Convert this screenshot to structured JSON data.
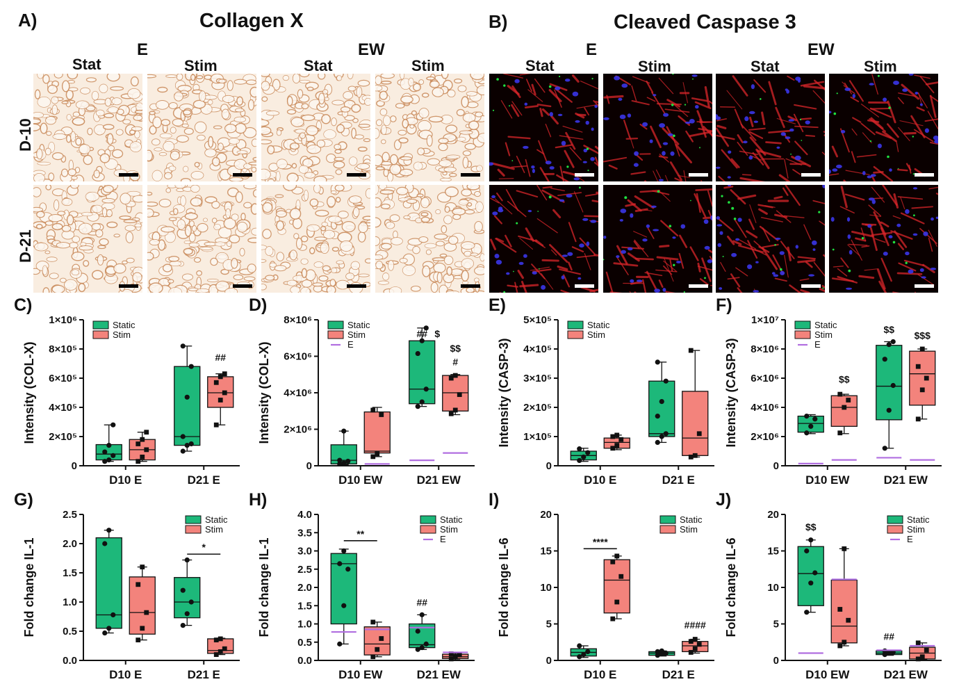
{
  "figure": {
    "panelA": {
      "letter": "A)",
      "title": "Collagen X"
    },
    "panelB": {
      "letter": "B)",
      "title": "Cleaved Caspase 3"
    },
    "micrograph_groups": {
      "A": {
        "groups": [
          "E",
          "EW"
        ],
        "cols": [
          "Stat",
          "Stim",
          "Stat",
          "Stim"
        ]
      },
      "B": {
        "groups": [
          "E",
          "EW"
        ],
        "cols": [
          "Stat",
          "Stim",
          "Stat",
          "Stim"
        ]
      }
    },
    "rows": [
      "D-10",
      "D-21"
    ]
  },
  "colors": {
    "static": "#1db87a",
    "stim": "#f3837c",
    "e_line": "#b06ee0",
    "ihc_bg": "#f9ede0",
    "ihc_stain": "#c98a5a",
    "if_bg": "#0a0000",
    "if_red": "#d8262a",
    "if_blue": "#3a35e8",
    "if_green": "#20e040"
  },
  "chart_data": [
    {
      "id": "C",
      "letter": "C)",
      "type": "box",
      "ylabel": "Intensity  (COL-X)",
      "ylim": [
        0,
        1000000
      ],
      "yticks": [
        "0",
        "2×10⁵",
        "4×10⁵",
        "6×10⁵",
        "8×10⁵",
        "1×10⁶"
      ],
      "categories": [
        "D10 E",
        "D21 E"
      ],
      "legend": [
        "Static",
        "Stim"
      ],
      "series": [
        {
          "name": "Static",
          "color": "static",
          "boxes": [
            {
              "min": 30000,
              "q1": 40000,
              "med": 80000,
              "q3": 145000,
              "max": 280000,
              "points": [
                30000,
                40000,
                70000,
                95000,
                140000,
                280000
              ]
            },
            {
              "min": 100000,
              "q1": 140000,
              "med": 200000,
              "q3": 680000,
              "max": 820000,
              "points": [
                100000,
                140000,
                150000,
                200000,
                470000,
                680000,
                820000
              ]
            }
          ]
        },
        {
          "name": "Stim",
          "color": "stim",
          "boxes": [
            {
              "min": 30000,
              "q1": 40000,
              "med": 110000,
              "q3": 180000,
              "max": 230000,
              "points": [
                30000,
                60000,
                110000,
                150000,
                180000,
                230000
              ]
            },
            {
              "min": 280000,
              "q1": 400000,
              "med": 500000,
              "q3": 610000,
              "max": 630000,
              "points": [
                280000,
                450000,
                500000,
                570000,
                610000,
                630000
              ]
            }
          ]
        }
      ],
      "e_levels": [],
      "annotations": [
        {
          "text": "##",
          "cat": 1,
          "series": 1,
          "y": 720000
        }
      ]
    },
    {
      "id": "D",
      "letter": "D)",
      "type": "box",
      "ylabel": "Intensity  (COL-X)",
      "ylim": [
        0,
        8000000
      ],
      "yticks": [
        "0",
        "2×10⁶",
        "4×10⁶",
        "6×10⁶",
        "8×10⁶"
      ],
      "categories": [
        "D10 EW",
        "D21 EW"
      ],
      "legend": [
        "Static",
        "Stim",
        "E"
      ],
      "series": [
        {
          "name": "Static",
          "color": "static",
          "boxes": [
            {
              "min": 50000,
              "q1": 100000,
              "med": 300000,
              "q3": 1150000,
              "max": 1900000,
              "points": [
                100000,
                150000,
                250000,
                300000,
                1900000
              ]
            },
            {
              "min": 3250000,
              "q1": 3400000,
              "med": 4200000,
              "q3": 6850000,
              "max": 7550000,
              "points": [
                3250000,
                3500000,
                4200000,
                6150000,
                6850000,
                7550000
              ]
            }
          ]
        },
        {
          "name": "Stim",
          "color": "stim",
          "boxes": [
            {
              "min": 500000,
              "q1": 700000,
              "med": 800000,
              "q3": 2950000,
              "max": 3200000,
              "points": [
                500000,
                650000,
                2800000,
                3050000
              ]
            },
            {
              "min": 2800000,
              "q1": 3000000,
              "med": 4000000,
              "q3": 4950000,
              "max": 5000000,
              "points": [
                2850000,
                3050000,
                3900000,
                4800000,
                4950000
              ]
            }
          ]
        }
      ],
      "e_levels": [
        {
          "cat": 0,
          "series": 1,
          "y": 100000
        },
        {
          "cat": 1,
          "series": 0,
          "y": 300000
        },
        {
          "cat": 1,
          "series": 1,
          "y": 700000
        }
      ],
      "annotations": [
        {
          "text": "##",
          "cat": 1,
          "series": 0,
          "y": 7050000
        },
        {
          "text": "$",
          "cat": 1,
          "series": 0,
          "y": 7050000,
          "dx": 22
        },
        {
          "text": "$$",
          "cat": 1,
          "series": 1,
          "y": 6250000
        },
        {
          "text": "#",
          "cat": 1,
          "series": 1,
          "y": 5500000
        }
      ]
    },
    {
      "id": "E",
      "letter": "E)",
      "type": "box",
      "ylabel": "Intensity  (CASP-3)",
      "ylim": [
        0,
        500000
      ],
      "yticks": [
        "0",
        "1×10⁵",
        "2×10⁵",
        "3×10⁵",
        "4×10⁵",
        "5×10⁵"
      ],
      "categories": [
        "D10 E",
        "D21 E"
      ],
      "legend": [
        "Static",
        "Stim"
      ],
      "series": [
        {
          "name": "Static",
          "color": "static",
          "boxes": [
            {
              "min": 15000,
              "q1": 20000,
              "med": 35000,
              "q3": 50000,
              "max": 60000,
              "points": [
                18000,
                30000,
                45000,
                58000
              ]
            },
            {
              "min": 80000,
              "q1": 100000,
              "med": 110000,
              "q3": 290000,
              "max": 355000,
              "points": [
                80000,
                100000,
                110000,
                170000,
                220000,
                290000,
                355000
              ]
            }
          ]
        },
        {
          "name": "Stim",
          "color": "stim",
          "boxes": [
            {
              "min": 55000,
              "q1": 60000,
              "med": 80000,
              "q3": 95000,
              "max": 105000,
              "points": [
                60000,
                70000,
                90000,
                100000,
                105000
              ]
            },
            {
              "min": 30000,
              "q1": 35000,
              "med": 95000,
              "q3": 255000,
              "max": 395000,
              "points": [
                30000,
                35000,
                110000,
                395000
              ]
            }
          ]
        }
      ],
      "e_levels": [],
      "annotations": []
    },
    {
      "id": "F",
      "letter": "F)",
      "type": "box",
      "ylabel": "Intensity  (CASP-3)",
      "ylim": [
        0,
        10000000
      ],
      "yticks": [
        "0",
        "2×10⁶",
        "4×10⁶",
        "6×10⁶",
        "8×10⁶",
        "1×10⁷"
      ],
      "categories": [
        "D10 EW",
        "D21 EW"
      ],
      "legend": [
        "Static",
        "Stim",
        "E"
      ],
      "series": [
        {
          "name": "Static",
          "color": "static",
          "boxes": [
            {
              "min": 2200000,
              "q1": 2300000,
              "med": 2900000,
              "q3": 3400000,
              "max": 3500000,
              "points": [
                2250000,
                2700000,
                3200000,
                3400000
              ]
            },
            {
              "min": 1200000,
              "q1": 3150000,
              "med": 5450000,
              "q3": 8250000,
              "max": 8500000,
              "points": [
                1200000,
                3800000,
                5500000,
                7300000,
                8300000,
                8500000
              ]
            }
          ]
        },
        {
          "name": "Stim",
          "color": "stim",
          "boxes": [
            {
              "min": 2200000,
              "q1": 2700000,
              "med": 4000000,
              "q3": 4800000,
              "max": 4900000,
              "points": [
                2250000,
                4000000,
                4500000,
                4900000
              ]
            },
            {
              "min": 3200000,
              "q1": 4150000,
              "med": 6300000,
              "q3": 7850000,
              "max": 8000000,
              "points": [
                3200000,
                5200000,
                6000000,
                6800000,
                8000000
              ]
            }
          ]
        }
      ],
      "e_levels": [
        {
          "cat": 0,
          "series": 0,
          "y": 150000
        },
        {
          "cat": 0,
          "series": 1,
          "y": 400000
        },
        {
          "cat": 1,
          "series": 0,
          "y": 550000
        },
        {
          "cat": 1,
          "series": 1,
          "y": 400000
        }
      ],
      "annotations": [
        {
          "text": "$$",
          "cat": 0,
          "series": 1,
          "y": 5700000
        },
        {
          "text": "$$",
          "cat": 1,
          "series": 0,
          "y": 9100000
        },
        {
          "text": "$$$",
          "cat": 1,
          "series": 1,
          "y": 8700000
        }
      ]
    },
    {
      "id": "G",
      "letter": "G)",
      "type": "box",
      "ylabel": "Fold change IL-1",
      "ylim": [
        0,
        2.5
      ],
      "yticks": [
        "0.0",
        "0.5",
        "1.0",
        "1.5",
        "2.0",
        "2.5"
      ],
      "categories": [
        "D10 E",
        "D21 E"
      ],
      "legend": [
        "Static",
        "Stim"
      ],
      "series": [
        {
          "name": "Static",
          "color": "static",
          "boxes": [
            {
              "min": 0.47,
              "q1": 0.55,
              "med": 0.78,
              "q3": 2.1,
              "max": 2.23,
              "points": [
                0.47,
                0.55,
                0.78,
                2.0,
                2.23
              ]
            },
            {
              "min": 0.6,
              "q1": 0.73,
              "med": 1.0,
              "q3": 1.42,
              "max": 1.72,
              "points": [
                0.6,
                0.8,
                1.0,
                1.2,
                1.72
              ]
            }
          ]
        },
        {
          "name": "Stim",
          "color": "stim",
          "boxes": [
            {
              "min": 0.35,
              "q1": 0.45,
              "med": 0.82,
              "q3": 1.43,
              "max": 1.6,
              "points": [
                0.35,
                0.55,
                0.82,
                1.3,
                1.6
              ]
            },
            {
              "min": 0.1,
              "q1": 0.12,
              "med": 0.17,
              "q3": 0.37,
              "max": 0.38,
              "points": [
                0.1,
                0.15,
                0.2,
                0.35,
                0.37
              ]
            }
          ]
        }
      ],
      "e_levels": [],
      "brackets": [
        {
          "cat": 1,
          "text": "*",
          "y": 1.82
        }
      ],
      "annotations": []
    },
    {
      "id": "H",
      "letter": "H)",
      "type": "box",
      "ylabel": "Fold change IL-1",
      "ylim": [
        0,
        4.0
      ],
      "yticks": [
        "0.0",
        "0.5",
        "1.0",
        "1.5",
        "2.0",
        "2.5",
        "3.0",
        "3.5",
        "4.0"
      ],
      "categories": [
        "D10 EW",
        "D21 EW"
      ],
      "legend": [
        "Static",
        "Stim",
        "E"
      ],
      "series": [
        {
          "name": "Static",
          "color": "static",
          "boxes": [
            {
              "min": 0.45,
              "q1": 1.0,
              "med": 2.65,
              "q3": 2.93,
              "max": 3.05,
              "points": [
                0.45,
                1.5,
                2.5,
                2.65,
                3.0
              ]
            },
            {
              "min": 0.3,
              "q1": 0.35,
              "med": 0.43,
              "q3": 1.0,
              "max": 1.25,
              "points": [
                0.3,
                0.35,
                0.45,
                0.8,
                1.25
              ]
            }
          ]
        },
        {
          "name": "Stim",
          "color": "stim",
          "boxes": [
            {
              "min": 0.1,
              "q1": 0.15,
              "med": 0.45,
              "q3": 0.92,
              "max": 1.05,
              "points": [
                0.1,
                0.3,
                0.6,
                1.05
              ]
            },
            {
              "min": 0.02,
              "q1": 0.05,
              "med": 0.1,
              "q3": 0.17,
              "max": 0.2,
              "points": [
                0.04,
                0.1,
                0.15,
                0.18
              ]
            }
          ]
        }
      ],
      "e_levels": [
        {
          "cat": 0,
          "series": 0,
          "y": 0.78
        },
        {
          "cat": 0,
          "series": 1,
          "y": 0.85
        },
        {
          "cat": 1,
          "series": 0,
          "y": 0.9
        },
        {
          "cat": 1,
          "series": 1,
          "y": 0.22
        }
      ],
      "brackets": [
        {
          "cat": 0,
          "text": "**",
          "y": 3.28
        }
      ],
      "annotations": [
        {
          "text": "##",
          "cat": 1,
          "series": 0,
          "y": 1.5
        }
      ]
    },
    {
      "id": "I",
      "letter": "I)",
      "type": "box",
      "ylabel": "Fold change IL-6",
      "ylim": [
        0,
        20
      ],
      "yticks": [
        "0",
        "5",
        "10",
        "15",
        "20"
      ],
      "categories": [
        "D10 E",
        "D21 E"
      ],
      "legend": [
        "Static",
        "Stim"
      ],
      "series": [
        {
          "name": "Static",
          "color": "static",
          "boxes": [
            {
              "min": 0.4,
              "q1": 0.6,
              "med": 1.1,
              "q3": 1.6,
              "max": 2.0,
              "points": [
                0.5,
                0.8,
                1.2,
                2.0
              ]
            },
            {
              "min": 0.6,
              "q1": 0.7,
              "med": 1.0,
              "q3": 1.2,
              "max": 1.3,
              "points": [
                0.7,
                0.9,
                1.0,
                1.2,
                1.3
              ]
            }
          ]
        },
        {
          "name": "Stim",
          "color": "stim",
          "boxes": [
            {
              "min": 5.7,
              "q1": 6.5,
              "med": 11.0,
              "q3": 13.8,
              "max": 14.3,
              "points": [
                5.7,
                8.0,
                11.5,
                13.5,
                14.3
              ]
            },
            {
              "min": 1.0,
              "q1": 1.2,
              "med": 2.0,
              "q3": 2.6,
              "max": 2.9,
              "points": [
                1.1,
                1.6,
                2.2,
                2.6,
                2.9
              ]
            }
          ]
        }
      ],
      "e_levels": [],
      "brackets": [
        {
          "cat": 0,
          "text": "****",
          "y": 15.3
        }
      ],
      "annotations": [
        {
          "text": "####",
          "cat": 1,
          "series": 1,
          "y": 4.4
        }
      ]
    },
    {
      "id": "J",
      "letter": "J)",
      "type": "box",
      "ylabel": "Fold change IL-6",
      "ylim": [
        0,
        20
      ],
      "yticks": [
        "0",
        "5",
        "10",
        "15",
        "20"
      ],
      "categories": [
        "D10 EW",
        "D21 EW"
      ],
      "legend": [
        "Static",
        "Stim",
        "E"
      ],
      "series": [
        {
          "name": "Static",
          "color": "static",
          "boxes": [
            {
              "min": 6.6,
              "q1": 7.5,
              "med": 11.9,
              "q3": 15.6,
              "max": 16.5,
              "points": [
                6.6,
                10.6,
                12.0,
                15.0,
                16.5
              ]
            },
            {
              "min": 0.7,
              "q1": 0.8,
              "med": 1.0,
              "q3": 1.3,
              "max": 1.4,
              "points": [
                0.8,
                1.0,
                1.1,
                1.3
              ]
            }
          ]
        },
        {
          "name": "Stim",
          "color": "stim",
          "boxes": [
            {
              "min": 2.0,
              "q1": 2.4,
              "med": 4.7,
              "q3": 11.0,
              "max": 15.3,
              "points": [
                2.0,
                2.5,
                5.5,
                7.0,
                15.3
              ]
            },
            {
              "min": 0.1,
              "q1": 0.2,
              "med": 1.0,
              "q3": 1.8,
              "max": 2.4,
              "points": [
                0.2,
                0.5,
                1.4,
                2.4
              ]
            }
          ]
        }
      ],
      "e_levels": [
        {
          "cat": 0,
          "series": 0,
          "y": 1.0
        },
        {
          "cat": 0,
          "series": 1,
          "y": 11.1
        },
        {
          "cat": 1,
          "series": 0,
          "y": 1.4
        },
        {
          "cat": 1,
          "series": 1,
          "y": 2.0
        }
      ],
      "annotations": [
        {
          "text": "$$",
          "cat": 0,
          "series": 0,
          "y": 17.8
        },
        {
          "text": "##",
          "cat": 1,
          "series": 0,
          "y": 2.8
        }
      ]
    }
  ]
}
